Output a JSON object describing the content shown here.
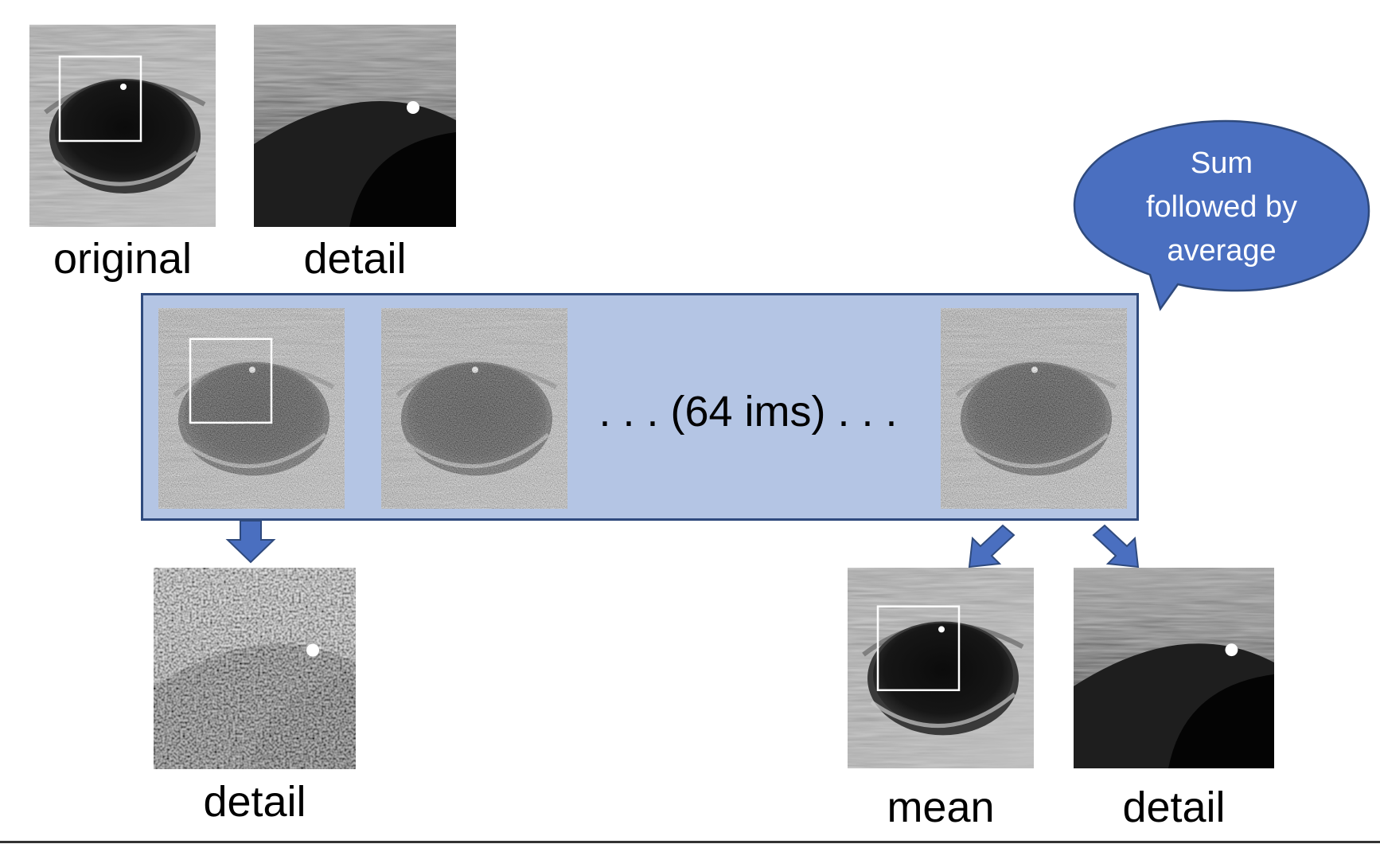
{
  "labels": {
    "original": "original",
    "detail_top": "detail",
    "detail_bottom_left": "detail",
    "mean": "mean",
    "detail_bottom_right": "detail"
  },
  "stack": {
    "ellipsis": ". . . (64 ims) . . ."
  },
  "bubble": {
    "lines": [
      "Sum",
      "followed by",
      "average"
    ]
  },
  "colors": {
    "panel_fill": "#b4c5e4",
    "panel_border": "#2f4a7d",
    "bubble_fill": "#4a6fc0",
    "arrow_fill": "#4a6fc0"
  }
}
